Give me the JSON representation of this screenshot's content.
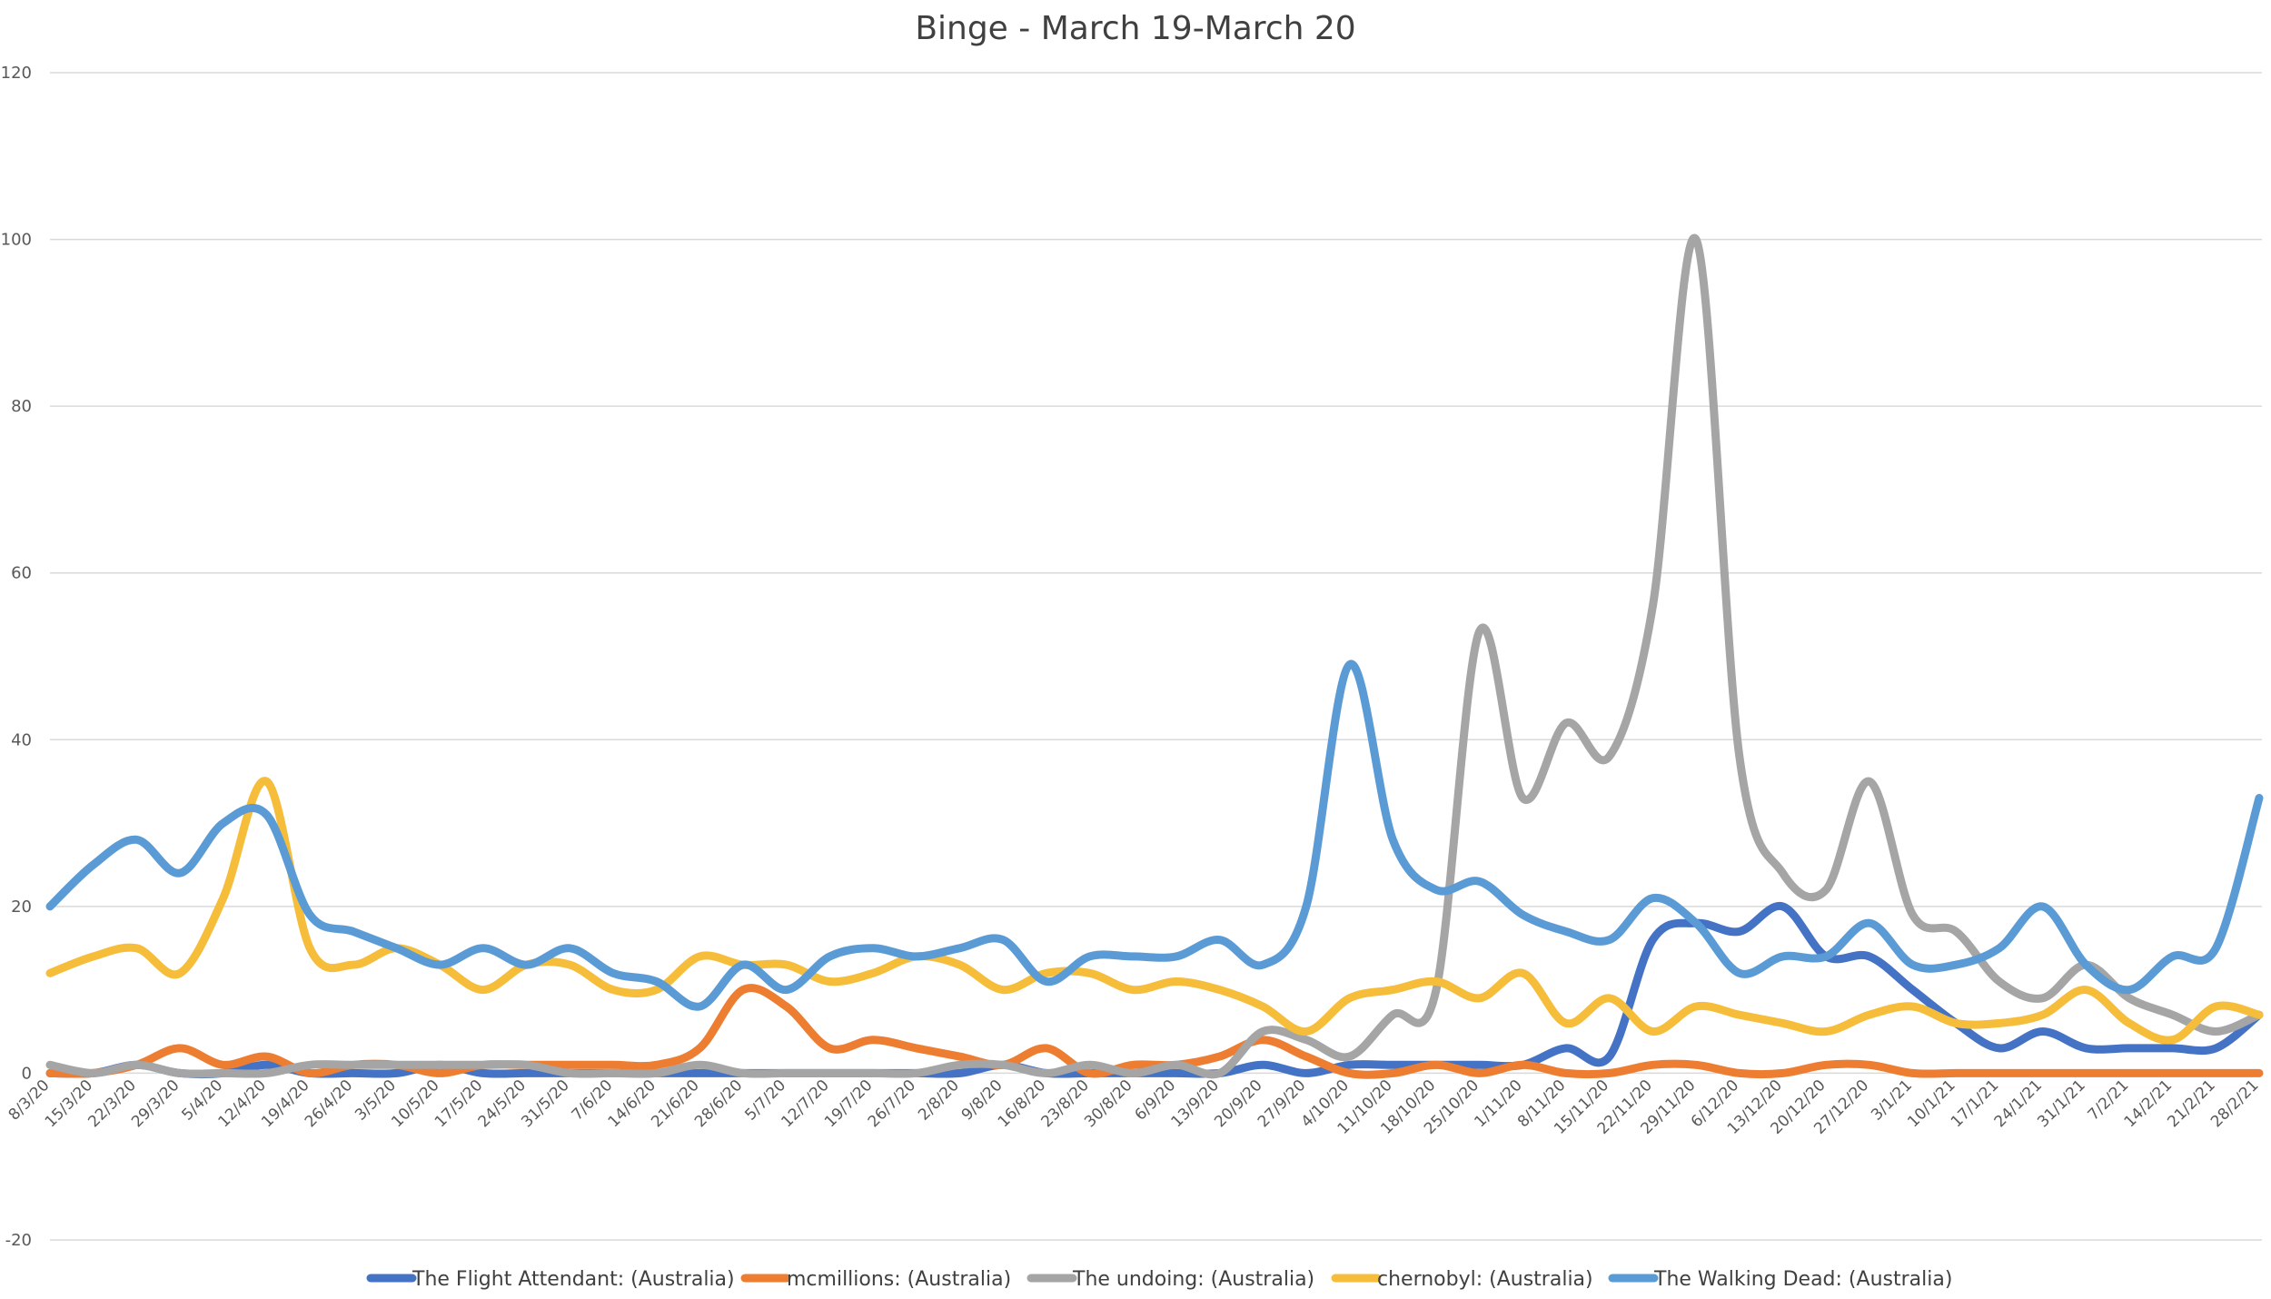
{
  "chart_data": {
    "type": "line",
    "title": "Binge - March 19-March 20",
    "xlabel": "",
    "ylabel": "",
    "ylim": [
      -20,
      120
    ],
    "yticks": [
      -20,
      0,
      20,
      40,
      60,
      80,
      100,
      120
    ],
    "grid": true,
    "legend_position": "bottom",
    "x": [
      "8/3/20",
      "15/3/20",
      "22/3/20",
      "29/3/20",
      "5/4/20",
      "12/4/20",
      "19/4/20",
      "26/4/20",
      "3/5/20",
      "10/5/20",
      "17/5/20",
      "24/5/20",
      "31/5/20",
      "7/6/20",
      "14/6/20",
      "21/6/20",
      "28/6/20",
      "5/7/20",
      "12/7/20",
      "19/7/20",
      "26/7/20",
      "2/8/20",
      "9/8/20",
      "16/8/20",
      "23/8/20",
      "30/8/20",
      "6/9/20",
      "13/9/20",
      "20/9/20",
      "27/9/20",
      "4/10/20",
      "11/10/20",
      "18/10/20",
      "25/10/20",
      "1/11/20",
      "8/11/20",
      "15/11/20",
      "22/11/20",
      "29/11/20",
      "6/12/20",
      "13/12/20",
      "20/12/20",
      "27/12/20",
      "3/1/21",
      "10/1/21",
      "17/1/21",
      "24/1/21",
      "31/1/21",
      "7/2/21",
      "14/2/21",
      "21/2/21",
      "28/2/21"
    ],
    "series": [
      {
        "name": "The Flight Attendant: (Australia)",
        "color": "#4472C4",
        "values": [
          0,
          0,
          1,
          0,
          0,
          1,
          0,
          0,
          0,
          1,
          0,
          0,
          0,
          0,
          0,
          0,
          0,
          0,
          0,
          0,
          0,
          0,
          1,
          0,
          0,
          0,
          0,
          0,
          1,
          0,
          1,
          1,
          1,
          1,
          1,
          3,
          2,
          16,
          18,
          17,
          20,
          14,
          14,
          10,
          6,
          3,
          5,
          3,
          3,
          3,
          3,
          7
        ]
      },
      {
        "name": "mcmillions: (Australia)",
        "color": "#ED7D31",
        "values": [
          0,
          0,
          1,
          3,
          1,
          2,
          0,
          1,
          1,
          0,
          1,
          1,
          1,
          1,
          1,
          3,
          10,
          8,
          3,
          4,
          3,
          2,
          1,
          3,
          0,
          1,
          1,
          2,
          4,
          2,
          0,
          0,
          1,
          0,
          1,
          0,
          0,
          1,
          1,
          0,
          0,
          1,
          1,
          0,
          0,
          0,
          0,
          0,
          0,
          0,
          0,
          0
        ]
      },
      {
        "name": "The undoing: (Australia)",
        "color": "#A5A5A5",
        "values": [
          1,
          0,
          1,
          0,
          0,
          0,
          1,
          1,
          1,
          1,
          1,
          1,
          0,
          0,
          0,
          1,
          0,
          0,
          0,
          0,
          0,
          1,
          1,
          0,
          1,
          0,
          1,
          0,
          5,
          4,
          2,
          7,
          10,
          53,
          33,
          42,
          38,
          56,
          100,
          38,
          24,
          22,
          35,
          19,
          17,
          11,
          9,
          13,
          9,
          7,
          5,
          7
        ]
      },
      {
        "name": "chernobyl: (Australia)",
        "color": "#F5BD3A",
        "values": [
          12,
          14,
          15,
          12,
          21,
          35,
          15,
          13,
          15,
          13,
          10,
          13,
          13,
          10,
          10,
          14,
          13,
          13,
          11,
          12,
          14,
          13,
          10,
          12,
          12,
          10,
          11,
          10,
          8,
          5,
          9,
          10,
          11,
          9,
          12,
          6,
          9,
          5,
          8,
          7,
          6,
          5,
          7,
          8,
          6,
          6,
          7,
          10,
          6,
          4,
          8,
          7
        ]
      },
      {
        "name": "The Walking Dead: (Australia)",
        "color": "#5B9BD5",
        "values": [
          20,
          25,
          28,
          24,
          30,
          31,
          19,
          17,
          15,
          13,
          15,
          13,
          15,
          12,
          11,
          8,
          13,
          10,
          14,
          15,
          14,
          15,
          16,
          11,
          14,
          14,
          14,
          16,
          13,
          20,
          49,
          28,
          22,
          23,
          19,
          17,
          16,
          21,
          18,
          12,
          14,
          14,
          18,
          13,
          13,
          15,
          20,
          13,
          10,
          14,
          15,
          33
        ]
      }
    ]
  }
}
